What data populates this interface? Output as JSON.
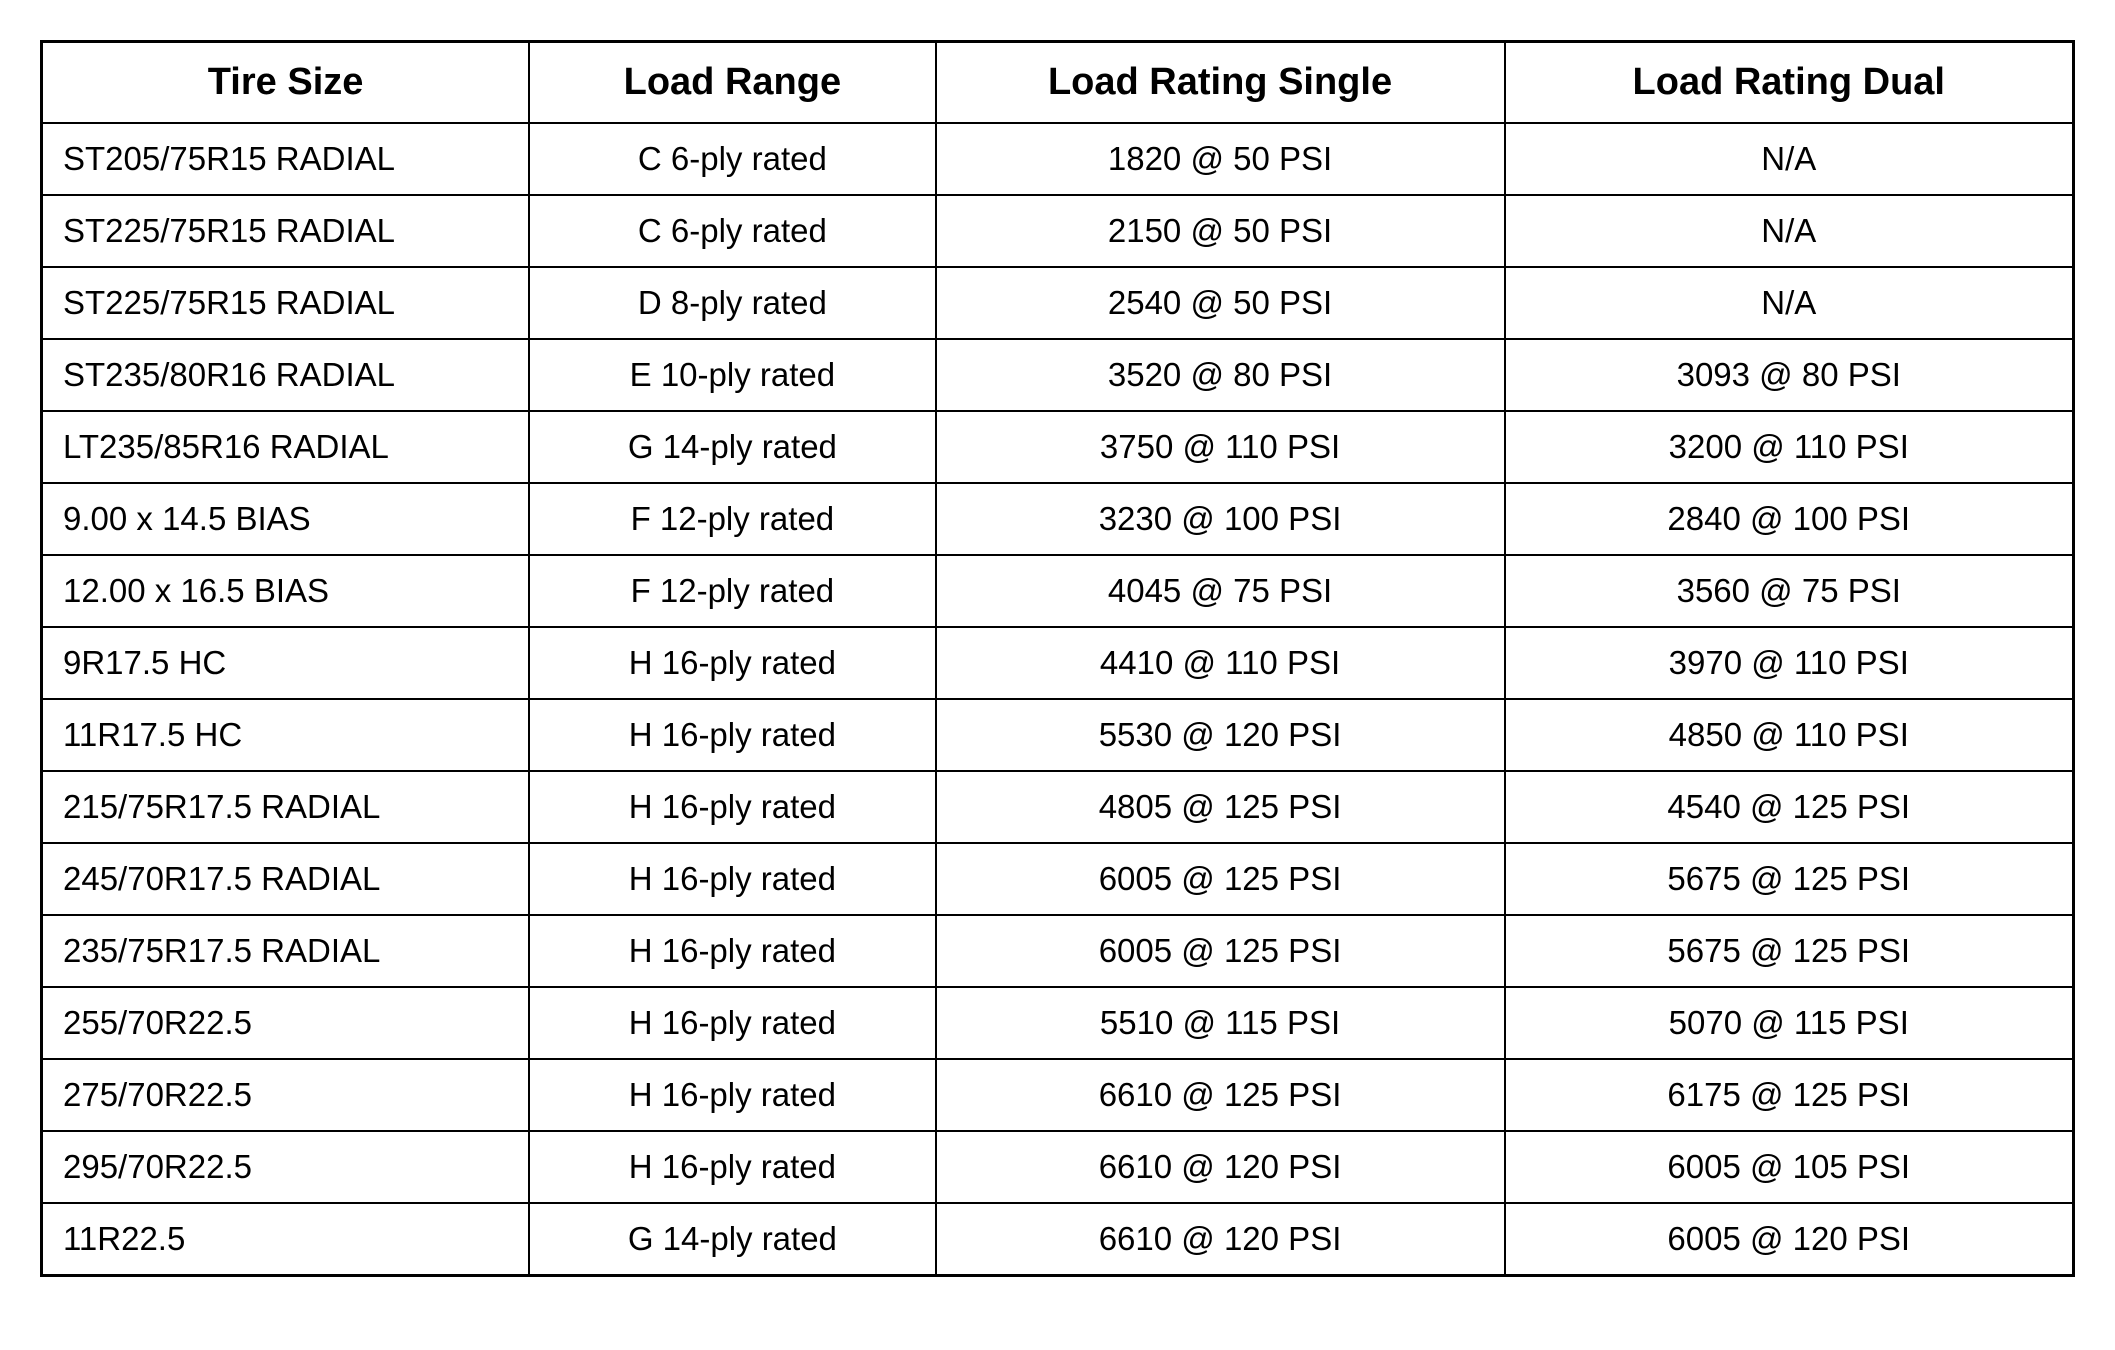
{
  "table": {
    "type": "table",
    "background_color": "#ffffff",
    "border_color": "#000000",
    "header_fontsize": 38,
    "cell_fontsize": 33,
    "text_color": "#000000",
    "columns": [
      {
        "key": "tire_size",
        "label": "Tire Size",
        "align": "left",
        "width_pct": 24
      },
      {
        "key": "load_range",
        "label": "Load Range",
        "align": "center",
        "width_pct": 20
      },
      {
        "key": "load_rating_single",
        "label": "Load Rating Single",
        "align": "center",
        "width_pct": 28
      },
      {
        "key": "load_rating_dual",
        "label": "Load Rating Dual",
        "align": "center",
        "width_pct": 28
      }
    ],
    "rows": [
      {
        "tire_size": "ST205/75R15 RADIAL",
        "load_range": "C 6-ply rated",
        "load_rating_single": "1820 @ 50 PSI",
        "load_rating_dual": "N/A"
      },
      {
        "tire_size": "ST225/75R15 RADIAL",
        "load_range": "C 6-ply rated",
        "load_rating_single": "2150 @ 50 PSI",
        "load_rating_dual": "N/A"
      },
      {
        "tire_size": "ST225/75R15 RADIAL",
        "load_range": "D 8-ply rated",
        "load_rating_single": "2540 @ 50 PSI",
        "load_rating_dual": "N/A"
      },
      {
        "tire_size": "ST235/80R16 RADIAL",
        "load_range": "E 10-ply rated",
        "load_rating_single": "3520 @ 80 PSI",
        "load_rating_dual": "3093 @ 80 PSI"
      },
      {
        "tire_size": "LT235/85R16 RADIAL",
        "load_range": "G 14-ply rated",
        "load_rating_single": "3750 @ 110 PSI",
        "load_rating_dual": "3200 @ 110 PSI"
      },
      {
        "tire_size": "9.00 x 14.5 BIAS",
        "load_range": "F 12-ply rated",
        "load_rating_single": "3230 @ 100 PSI",
        "load_rating_dual": "2840 @ 100 PSI"
      },
      {
        "tire_size": "12.00 x 16.5 BIAS",
        "load_range": "F 12-ply rated",
        "load_rating_single": "4045 @ 75 PSI",
        "load_rating_dual": "3560 @ 75 PSI"
      },
      {
        "tire_size": "9R17.5 HC",
        "load_range": "H 16-ply rated",
        "load_rating_single": "4410 @ 110 PSI",
        "load_rating_dual": "3970 @ 110 PSI"
      },
      {
        "tire_size": "11R17.5 HC",
        "load_range": "H 16-ply rated",
        "load_rating_single": "5530 @ 120 PSI",
        "load_rating_dual": "4850 @ 110 PSI"
      },
      {
        "tire_size": "215/75R17.5 RADIAL",
        "load_range": "H 16-ply rated",
        "load_rating_single": "4805 @ 125 PSI",
        "load_rating_dual": "4540 @ 125 PSI"
      },
      {
        "tire_size": "245/70R17.5 RADIAL",
        "load_range": "H 16-ply rated",
        "load_rating_single": "6005 @ 125 PSI",
        "load_rating_dual": "5675 @ 125 PSI"
      },
      {
        "tire_size": "235/75R17.5 RADIAL",
        "load_range": "H 16-ply rated",
        "load_rating_single": "6005 @ 125 PSI",
        "load_rating_dual": "5675 @ 125 PSI"
      },
      {
        "tire_size": "255/70R22.5",
        "load_range": "H 16-ply rated",
        "load_rating_single": "5510 @ 115 PSI",
        "load_rating_dual": "5070 @ 115 PSI"
      },
      {
        "tire_size": "275/70R22.5",
        "load_range": "H 16-ply rated",
        "load_rating_single": "6610 @ 125 PSI",
        "load_rating_dual": "6175 @ 125 PSI"
      },
      {
        "tire_size": "295/70R22.5",
        "load_range": "H 16-ply rated",
        "load_rating_single": "6610 @ 120 PSI",
        "load_rating_dual": "6005 @ 105 PSI"
      },
      {
        "tire_size": "11R22.5",
        "load_range": "G 14-ply rated",
        "load_rating_single": "6610 @ 120 PSI",
        "load_rating_dual": "6005 @ 120 PSI"
      }
    ]
  }
}
